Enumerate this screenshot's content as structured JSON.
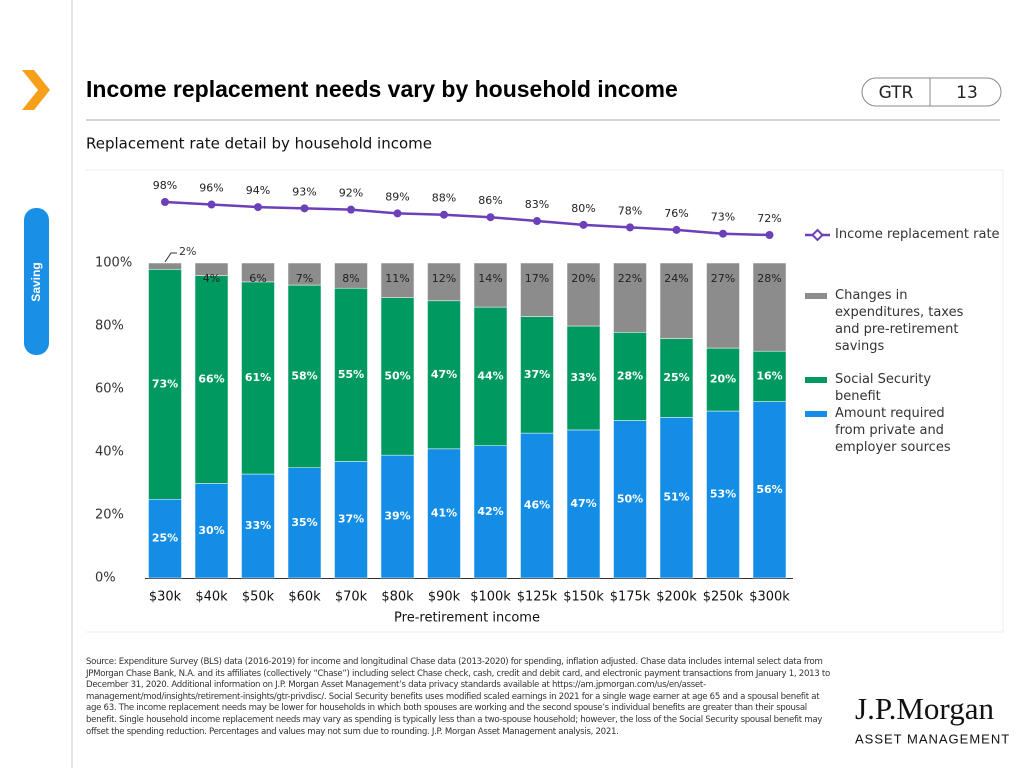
{
  "header": {
    "title": "Income replacement needs vary by household income",
    "section": "Saving",
    "tag": "GTR",
    "page": "13"
  },
  "chart_data": {
    "type": "bar",
    "stacked": true,
    "subtitle": "Replacement rate detail by household income",
    "xlabel": "Pre-retirement income",
    "categories": [
      "$30k",
      "$40k",
      "$50k",
      "$60k",
      "$70k",
      "$80k",
      "$90k",
      "$100k",
      "$125k",
      "$150k",
      "$175k",
      "$200k",
      "$250k",
      "$300k"
    ],
    "ylim": [
      0,
      100
    ],
    "yticks": [
      {
        "value": 0,
        "label": "0%"
      },
      {
        "value": 20,
        "label": "20%"
      },
      {
        "value": 40,
        "label": "40%"
      },
      {
        "value": 60,
        "label": "60%"
      },
      {
        "value": 80,
        "label": "80%"
      },
      {
        "value": 100,
        "label": "100%"
      }
    ],
    "series": [
      {
        "name": "Amount required from private and employer sources",
        "color": "#138de6",
        "values": [
          25,
          30,
          33,
          35,
          37,
          39,
          41,
          42,
          46,
          47,
          50,
          51,
          53,
          56
        ],
        "value_labels": [
          "25%",
          "30%",
          "33%",
          "35%",
          "37%",
          "39%",
          "41%",
          "42%",
          "46%",
          "47%",
          "50%",
          "51%",
          "53%",
          "56%"
        ]
      },
      {
        "name": "Social Security benefit",
        "color": "#009a61",
        "values": [
          73,
          66,
          61,
          58,
          55,
          50,
          47,
          44,
          37,
          33,
          28,
          25,
          20,
          16
        ],
        "value_labels": [
          "73%",
          "66%",
          "61%",
          "58%",
          "55%",
          "50%",
          "47%",
          "44%",
          "37%",
          "33%",
          "28%",
          "25%",
          "20%",
          "16%"
        ]
      },
      {
        "name": "Changes in expenditures, taxes and pre-retirement savings",
        "color": "#8c8c8c",
        "values": [
          2,
          4,
          6,
          7,
          8,
          11,
          12,
          14,
          17,
          20,
          22,
          24,
          27,
          28
        ],
        "value_labels": [
          "2%",
          "4%",
          "6%",
          "7%",
          "8%",
          "11%",
          "12%",
          "14%",
          "17%",
          "20%",
          "22%",
          "24%",
          "27%",
          "28%"
        ]
      },
      {
        "name": "Income replacement rate",
        "type": "line",
        "color": "#6b40b8",
        "values": [
          98,
          96,
          94,
          93,
          92,
          89,
          88,
          86,
          83,
          80,
          78,
          76,
          73,
          72
        ],
        "value_labels": [
          "98%",
          "96%",
          "94%",
          "93%",
          "92%",
          "89%",
          "88%",
          "86%",
          "83%",
          "80%",
          "78%",
          "76%",
          "73%",
          "72%"
        ]
      }
    ]
  },
  "footnote": "Source: Expenditure Survey (BLS) data (2016-2019) for income and longitudinal Chase data (2013-2020) for spending, inflation adjusted. Chase data includes internal select data from JPMorgan Chase Bank, N.A. and its affiliates (collectively “Chase”) including select Chase check, cash, credit and debit card, and electronic payment transactions from January 1, 2013 to December 31, 2020. Additional information on J.P. Morgan Asset Management’s data privacy standards available at https://am.jpmorgan.com/us/en/asset-management/mod/insights/retirement-insights/gtr-privdisc/. Social Security benefits uses modified scaled earnings in 2021 for a single wage earner at age 65 and a spousal benefit at age 63. The income replacement needs may be lower for households in which both spouses are working and the second spouse’s individual benefits are greater than their spousal benefit. Single household income replacement needs may vary as spending is typically less than a two-spouse household; however, the loss of the Social Security spousal benefit may offset the spending reduction. Percentages and values may not sum due to rounding. J.P. Morgan Asset Management analysis, 2021.",
  "logo": {
    "name": "J.P.Morgan",
    "sub": "ASSET MANAGEMENT"
  }
}
